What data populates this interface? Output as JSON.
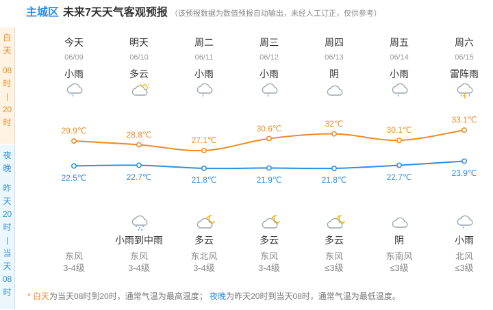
{
  "header": {
    "city": "主城区",
    "title": "未来7天天气客观预报",
    "note": "（该预报数据为数值预报自动输出，未经人工订正，仅供参考）"
  },
  "side": {
    "day_chars": [
      "白",
      "天",
      "",
      "08",
      "时",
      "|",
      "20",
      "时"
    ],
    "night_chars": [
      "夜",
      "晚",
      "",
      "昨",
      "天",
      "20",
      "时",
      "|",
      "当",
      "天",
      "08",
      "时"
    ]
  },
  "days": [
    {
      "weekday": "今天",
      "date": "06/09",
      "day_cond": "小雨",
      "day_icon": "light-rain-icon",
      "high": "29.9℃",
      "low": "22.5℃",
      "night_cond": "",
      "night_icon": "",
      "wind_dir": "东风",
      "wind_level": "3-4级"
    },
    {
      "weekday": "明天",
      "date": "06/10",
      "day_cond": "多云",
      "day_icon": "cloudy-day-icon",
      "high": "28.8℃",
      "low": "22.7℃",
      "night_cond": "小雨到中雨",
      "night_icon": "rain-icon",
      "wind_dir": "东风",
      "wind_level": "3-4级"
    },
    {
      "weekday": "周二",
      "date": "06/11",
      "day_cond": "小雨",
      "day_icon": "light-rain-icon",
      "high": "27.1℃",
      "low": "21.8℃",
      "night_cond": "多云",
      "night_icon": "cloudy-night-icon",
      "wind_dir": "东北风",
      "wind_level": "3-4级"
    },
    {
      "weekday": "周三",
      "date": "06/12",
      "day_cond": "小雨",
      "day_icon": "light-rain-icon",
      "high": "30.6℃",
      "low": "21.9℃",
      "night_cond": "多云",
      "night_icon": "cloudy-night-icon",
      "wind_dir": "东风",
      "wind_level": "3-4级"
    },
    {
      "weekday": "周四",
      "date": "06/13",
      "day_cond": "阴",
      "day_icon": "overcast-icon",
      "high": "32℃",
      "low": "21.8℃",
      "night_cond": "多云",
      "night_icon": "cloudy-night-icon",
      "wind_dir": "东风",
      "wind_level": "≤3级"
    },
    {
      "weekday": "周五",
      "date": "06/14",
      "day_cond": "小雨",
      "day_icon": "light-rain-icon",
      "high": "30.1℃",
      "low": "22.7℃",
      "night_cond": "阴",
      "night_icon": "overcast-icon",
      "wind_dir": "东南风",
      "wind_level": "≤3级"
    },
    {
      "weekday": "周六",
      "date": "06/15",
      "day_cond": "雷阵雨",
      "day_icon": "thunderstorm-icon",
      "high": "33.1℃",
      "low": "23.9℃",
      "night_cond": "小雨",
      "night_icon": "light-rain-icon",
      "wind_dir": "北风",
      "wind_level": "≤3级"
    }
  ],
  "chart_data": {
    "type": "line",
    "categories": [
      "06/09",
      "06/10",
      "06/11",
      "06/12",
      "06/13",
      "06/14",
      "06/15"
    ],
    "series": [
      {
        "values": [
          29.9,
          28.8,
          27.1,
          30.6,
          32,
          30.1,
          33.1
        ],
        "color": "#f08a24"
      },
      {
        "values": [
          22.5,
          22.7,
          21.8,
          21.9,
          21.8,
          22.7,
          23.9
        ],
        "color": "#2f8ee0"
      }
    ]
  },
  "footnote": {
    "star": "*",
    "day_term": "白天",
    "day_text": "为当天08时到20时，通常气温为最高温度；",
    "night_term": "夜晚",
    "night_text": "为昨天20时到当天08时，通常气温为最低温度。"
  },
  "colors": {
    "day": "#f08a24",
    "night": "#2f8ee0",
    "icon": "#9aa4ae",
    "sun": "#f5b400"
  }
}
